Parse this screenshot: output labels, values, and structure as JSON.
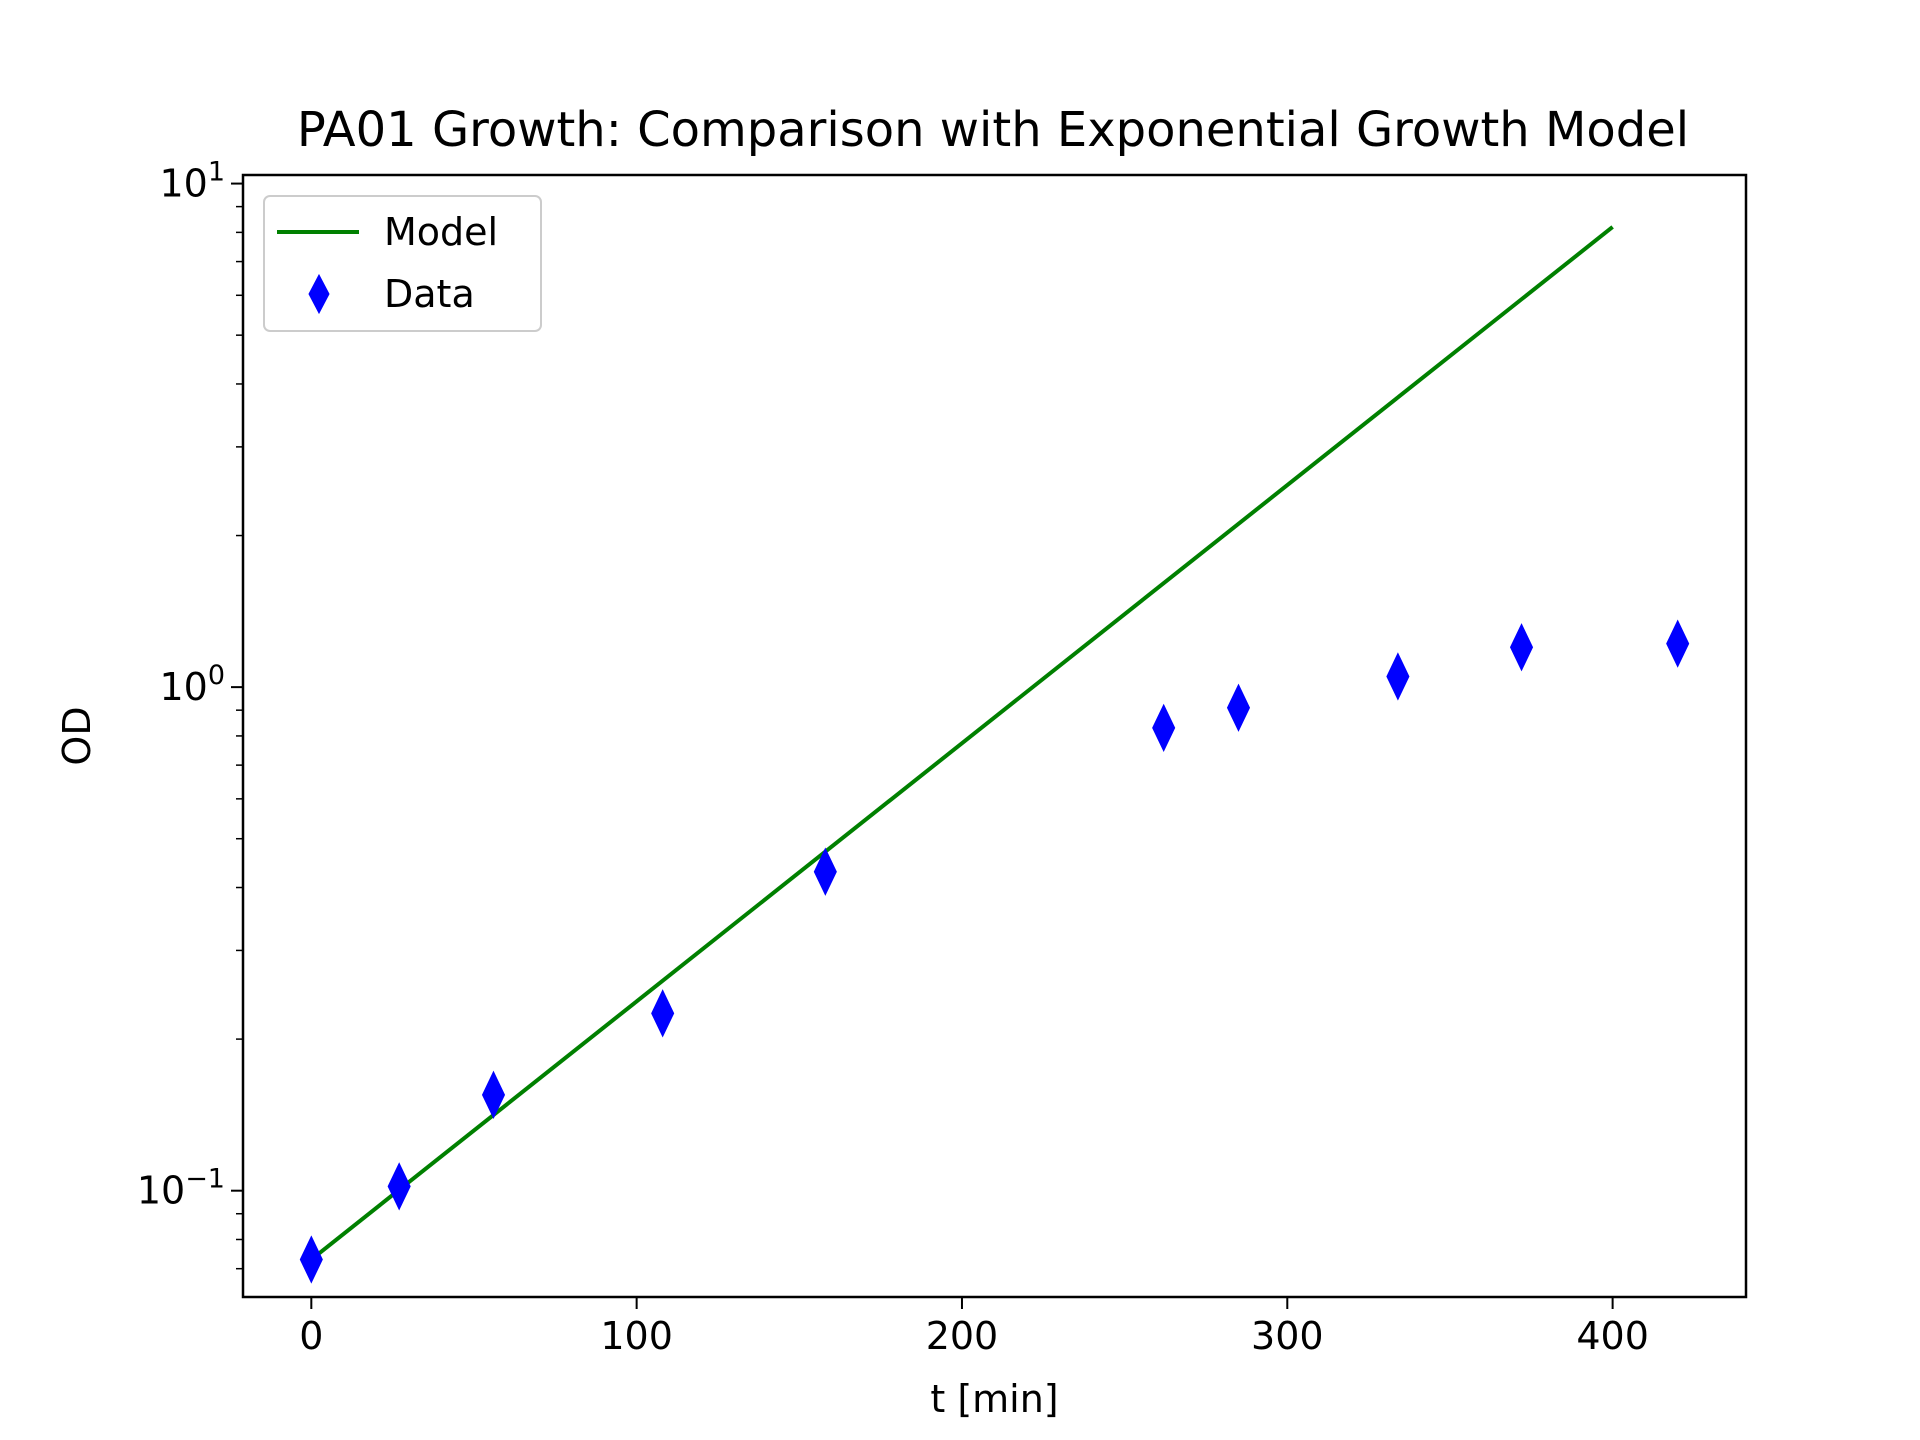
{
  "chart_data": {
    "type": "scatter",
    "title": "PA01 Growth: Comparison with Exponential Growth Model",
    "xlabel": "t [min]",
    "ylabel": "OD",
    "xlim": [
      -21,
      441
    ],
    "ylim": [
      0.0615,
      10.4
    ],
    "yscale": "log",
    "x_ticks": [
      0,
      100,
      200,
      300,
      400
    ],
    "x_tick_labels": [
      "0",
      "100",
      "200",
      "300",
      "400"
    ],
    "y_ticks": [
      {
        "value": 0.1,
        "base": "10",
        "exp": "−1"
      },
      {
        "value": 1,
        "base": "10",
        "exp": "0"
      },
      {
        "value": 10,
        "base": "10",
        "exp": "1"
      }
    ],
    "legend_position": "upper-left",
    "grid": false,
    "series": [
      {
        "name": "Model",
        "kind": "line",
        "color": "#008000",
        "x": [
          0,
          400
        ],
        "y": [
          0.073,
          8.2
        ]
      },
      {
        "name": "Data",
        "kind": "marker",
        "marker": "thin-diamond",
        "color": "#0000ff",
        "x": [
          0,
          27,
          56,
          108,
          158,
          262,
          285,
          334,
          372,
          420
        ],
        "y": [
          0.073,
          0.102,
          0.155,
          0.225,
          0.43,
          0.83,
          0.91,
          1.05,
          1.2,
          1.22
        ]
      }
    ]
  }
}
